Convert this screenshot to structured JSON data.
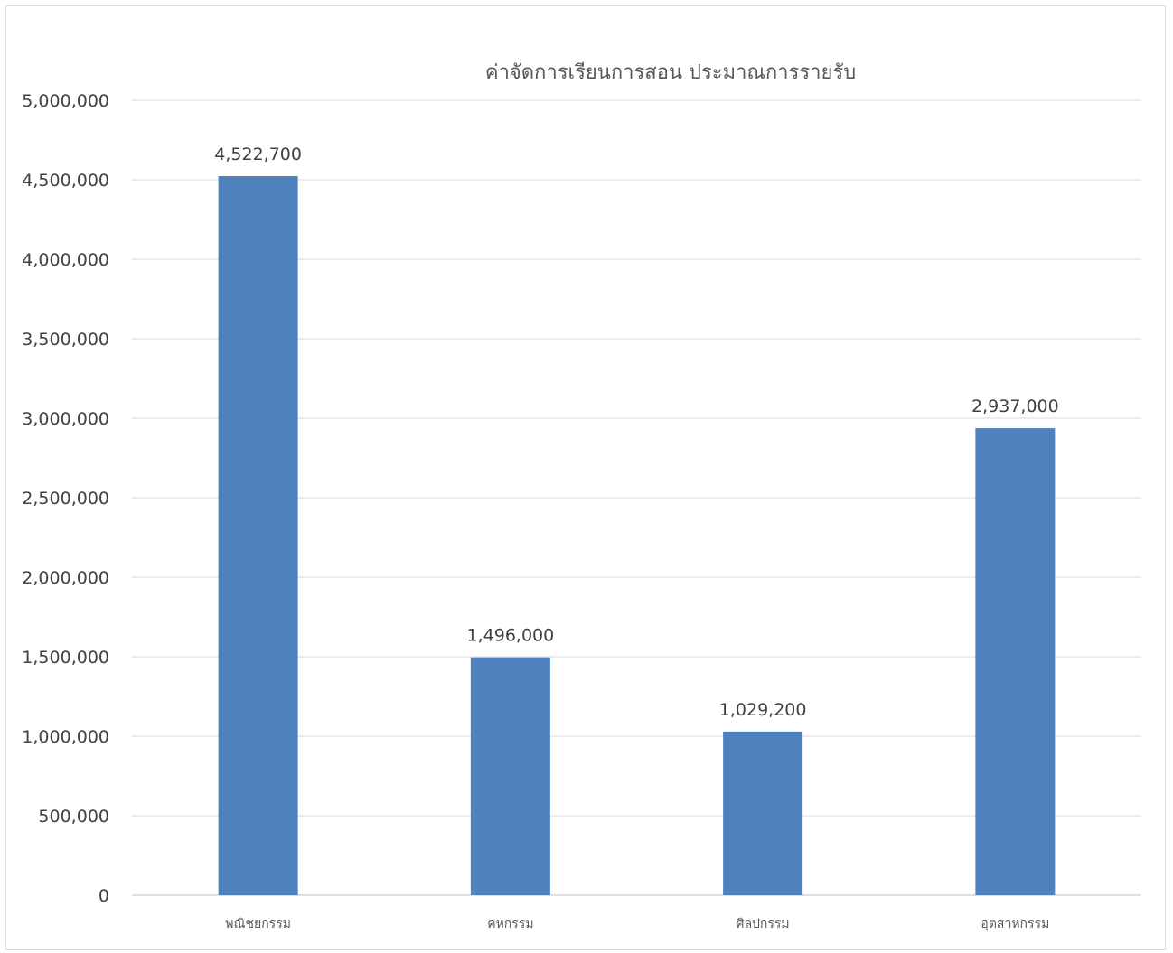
{
  "chart_data": {
    "type": "bar",
    "title": "ค่าจัดการเรียนการสอน ประมาณการรายรับ",
    "categories": [
      "พณิชยกรรม",
      "คหกรรม",
      "ศิลปกรรม",
      "อุตสาหกรรม"
    ],
    "series": [
      {
        "values": [
          4522700,
          1496000,
          1029200,
          2937000
        ],
        "color": "#4f81bd"
      }
    ],
    "data_labels": [
      "4,522,700",
      "1,496,000",
      "1,029,200",
      "2,937,000"
    ],
    "y_ticks": [
      "0",
      "500,000",
      "1,000,000",
      "1,500,000",
      "2,000,000",
      "2,500,000",
      "3,000,000",
      "3,500,000",
      "4,000,000",
      "4,500,000",
      "5,000,000"
    ],
    "ylim": [
      0,
      5000000
    ],
    "grid": true,
    "legend": "none"
  },
  "colors": {
    "bar": "#4f81bd",
    "gridline": "#d9d9d9",
    "axis": "#bfbfbf"
  }
}
